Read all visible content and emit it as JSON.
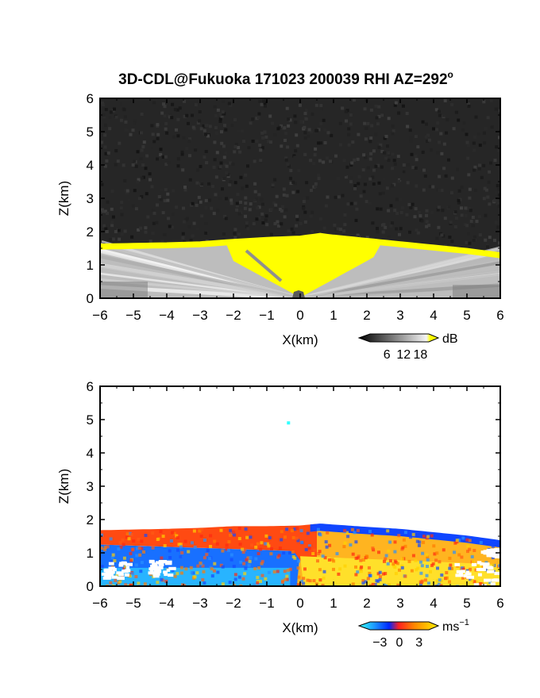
{
  "chart_data": [
    {
      "type": "heatmap",
      "title": "3D-CDL@Fukuoka 171023 200039 RHI AZ=292",
      "title_superscript": "o",
      "xlabel": "X(km)",
      "ylabel": "Z(km)",
      "xlim": [
        -6,
        6
      ],
      "ylim": [
        0,
        6
      ],
      "x_ticks": [
        "-6",
        "-5",
        "-4",
        "-3",
        "-2",
        "-1",
        "0",
        "1",
        "2",
        "3",
        "4",
        "5",
        "6"
      ],
      "y_ticks": [
        "0",
        "1",
        "2",
        "3",
        "4",
        "5",
        "6"
      ],
      "colorbar": {
        "unit": "dB",
        "ticks": [
          "6",
          "12",
          "18"
        ],
        "range": [
          0,
          21
        ]
      },
      "top_of_return_km": [
        {
          "x": -6.0,
          "z": 1.58
        },
        {
          "x": -5.0,
          "z": 1.6
        },
        {
          "x": -4.0,
          "z": 1.62
        },
        {
          "x": -3.0,
          "z": 1.65
        },
        {
          "x": -2.0,
          "z": 1.72
        },
        {
          "x": -1.0,
          "z": 1.78
        },
        {
          "x": 0.0,
          "z": 1.82
        },
        {
          "x": 0.6,
          "z": 1.9
        },
        {
          "x": 1.0,
          "z": 1.85
        },
        {
          "x": 2.0,
          "z": 1.75
        },
        {
          "x": 3.0,
          "z": 1.65
        },
        {
          "x": 4.0,
          "z": 1.55
        },
        {
          "x": 5.0,
          "z": 1.45
        },
        {
          "x": 6.0,
          "z": 1.32
        }
      ],
      "saturated_region_color": "#ffff00",
      "background_noise_color": "#262626"
    },
    {
      "type": "heatmap",
      "xlabel": "X(km)",
      "ylabel": "Z(km)",
      "xlim": [
        -6,
        6
      ],
      "ylim": [
        0,
        6
      ],
      "x_ticks": [
        "-6",
        "-5",
        "-4",
        "-3",
        "-2",
        "-1",
        "0",
        "1",
        "2",
        "3",
        "4",
        "5",
        "6"
      ],
      "y_ticks": [
        "0",
        "1",
        "2",
        "3",
        "4",
        "5",
        "6"
      ],
      "colorbar": {
        "unit": "ms",
        "unit_exponent": "−1",
        "ticks": [
          "−3",
          "0",
          "3"
        ],
        "range": [
          -4.5,
          4.5
        ]
      },
      "top_of_return_km": [
        {
          "x": -6.0,
          "z": 1.68
        },
        {
          "x": -5.0,
          "z": 1.7
        },
        {
          "x": -4.0,
          "z": 1.72
        },
        {
          "x": -3.0,
          "z": 1.75
        },
        {
          "x": -2.0,
          "z": 1.8
        },
        {
          "x": -1.0,
          "z": 1.8
        },
        {
          "x": 0.0,
          "z": 1.82
        },
        {
          "x": 0.6,
          "z": 1.88
        },
        {
          "x": 1.0,
          "z": 1.85
        },
        {
          "x": 2.0,
          "z": 1.78
        },
        {
          "x": 3.0,
          "z": 1.72
        },
        {
          "x": 4.0,
          "z": 1.62
        },
        {
          "x": 5.0,
          "z": 1.52
        },
        {
          "x": 6.0,
          "z": 1.38
        }
      ],
      "isolated_point_km": {
        "x": -0.35,
        "z": 4.9
      },
      "colors": {
        "toward": "#0a64ff",
        "away": "#ffd21e",
        "near_zero": "#ff5a14"
      }
    }
  ]
}
